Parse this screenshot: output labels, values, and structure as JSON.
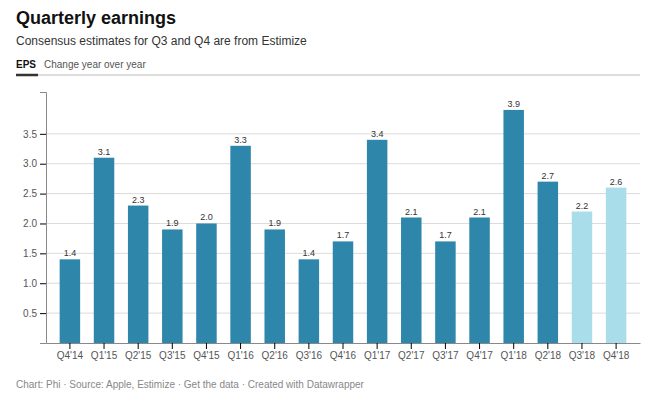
{
  "chart_data": {
    "type": "bar",
    "title": "Quarterly earnings",
    "subtitle": "Consensus estimates for Q3 and Q4 are from Estimize",
    "y_label": "EPS",
    "y_sublabel": "Change year over year",
    "footer": "Chart: Phi · Source: Apple, Estimize · Get the data · Created with Datawrapper",
    "categories": [
      "Q4'14",
      "Q1'15",
      "Q2'15",
      "Q3'15",
      "Q4'15",
      "Q1'16",
      "Q2'16",
      "Q3'16",
      "Q4'16",
      "Q1'17",
      "Q2'17",
      "Q3'17",
      "Q4'17",
      "Q1'18",
      "Q2'18",
      "Q3'18",
      "Q4'18"
    ],
    "values": [
      1.4,
      3.1,
      2.3,
      1.9,
      2.0,
      3.3,
      1.9,
      1.4,
      1.7,
      3.4,
      2.1,
      1.7,
      2.1,
      3.9,
      2.7,
      2.2,
      2.6
    ],
    "value_labels": [
      "1.4",
      "3.1",
      "2.3",
      "1.9",
      "2.0",
      "3.3",
      "1.9",
      "1.4",
      "1.7",
      "3.4",
      "2.1",
      "1.7",
      "2.1",
      "3.9",
      "2.7",
      "2.2",
      "2.6"
    ],
    "colors": [
      "#2e86ab",
      "#2e86ab",
      "#2e86ab",
      "#2e86ab",
      "#2e86ab",
      "#2e86ab",
      "#2e86ab",
      "#2e86ab",
      "#2e86ab",
      "#2e86ab",
      "#2e86ab",
      "#2e86ab",
      "#2e86ab",
      "#2e86ab",
      "#2e86ab",
      "#a8dde9",
      "#a8dde9"
    ],
    "ylim": [
      0,
      4.2
    ],
    "yticks": [
      0.5,
      {
        "value": 1.0,
        "label": "1.0"
      },
      1.5,
      {
        "value": 2.0,
        "label": "2.0"
      },
      2.5,
      {
        "value": 3.0,
        "label": "3.0"
      },
      3.5
    ],
    "grid": true,
    "data_labels": true
  }
}
